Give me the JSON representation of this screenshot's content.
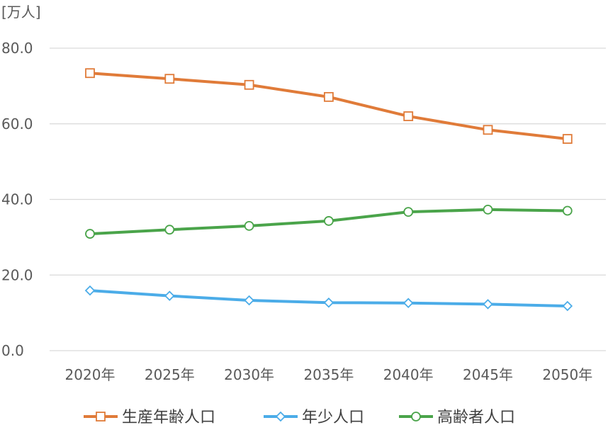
{
  "chart_data": {
    "type": "line",
    "unit_label": "[万人]",
    "categories": [
      "2020年",
      "2025年",
      "2030年",
      "2035年",
      "2040年",
      "2045年",
      "2050年"
    ],
    "ylim": [
      0,
      80
    ],
    "yticks": [
      "0.0",
      "20.0",
      "40.0",
      "60.0",
      "80.0"
    ],
    "grid": true,
    "legend_position": "bottom",
    "series": [
      {
        "name": "生産年齢人口",
        "color": "#E07B39",
        "marker": "square",
        "values": [
          73.4,
          71.9,
          70.3,
          67.1,
          62.0,
          58.4,
          56.0
        ]
      },
      {
        "name": "年少人口",
        "color": "#4BACE8",
        "marker": "diamond",
        "values": [
          15.9,
          14.5,
          13.3,
          12.7,
          12.6,
          12.3,
          11.8
        ]
      },
      {
        "name": "高齢者人口",
        "color": "#4AA44A",
        "marker": "circle",
        "values": [
          30.9,
          32.0,
          33.0,
          34.3,
          36.7,
          37.3,
          37.0
        ]
      }
    ]
  }
}
